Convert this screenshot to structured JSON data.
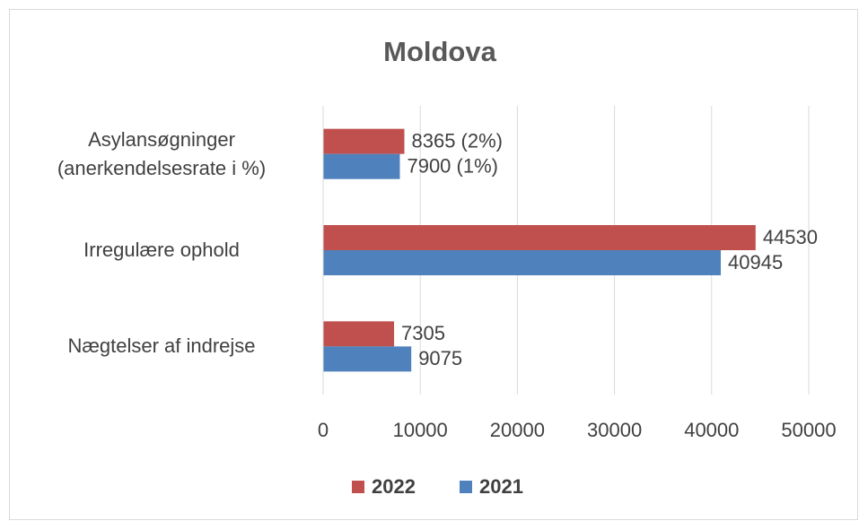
{
  "chart_data": {
    "type": "bar",
    "orientation": "horizontal",
    "title": "Moldova",
    "categories": [
      "Asylansøgninger (anerkendelsesrate i %)",
      "Irregulære ophold",
      "Nægtelser af indrejse"
    ],
    "series": [
      {
        "name": "2022",
        "color": "#c0504d",
        "values": [
          8365,
          44530,
          7305
        ],
        "value_labels": [
          "8365 (2%)",
          "44530",
          "7305"
        ]
      },
      {
        "name": "2021",
        "color": "#4f81bd",
        "values": [
          7900,
          40945,
          9075
        ],
        "value_labels": [
          "7900 (1%)",
          "40945",
          "9075"
        ]
      }
    ],
    "xlim": [
      0,
      50000
    ],
    "xticks": [
      0,
      10000,
      20000,
      30000,
      40000,
      50000
    ],
    "grid": true,
    "legend": "bottom"
  }
}
